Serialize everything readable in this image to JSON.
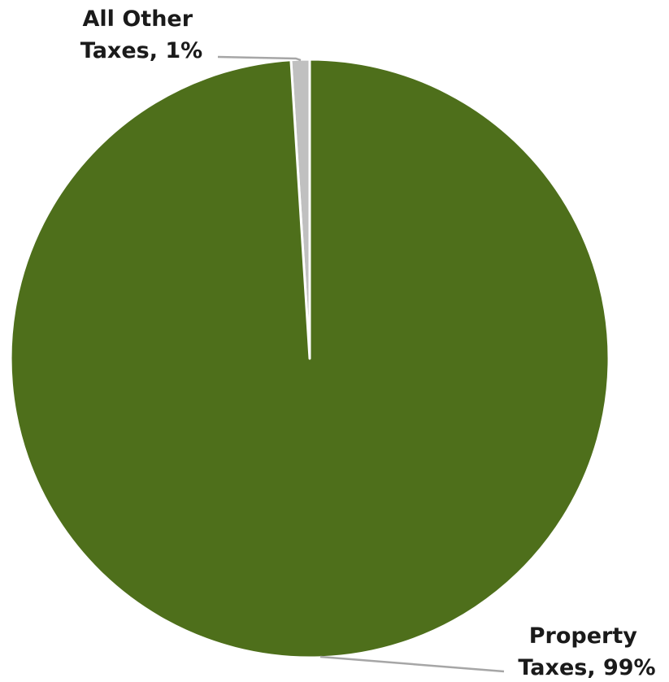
{
  "chart_data": {
    "type": "pie",
    "slices": [
      {
        "label_line1": "All Other",
        "label_line2": "Taxes, 1%",
        "value": 1,
        "color": "#c0c0c0"
      },
      {
        "label_line1": "Property",
        "label_line2": "Taxes, 99%",
        "value": 99,
        "color": "#4e6f1b"
      }
    ],
    "start": "12 o'clock",
    "direction": "counterclockwise",
    "slice_border_color": "#ffffff",
    "leader_line_color": "#a6a6a6"
  }
}
